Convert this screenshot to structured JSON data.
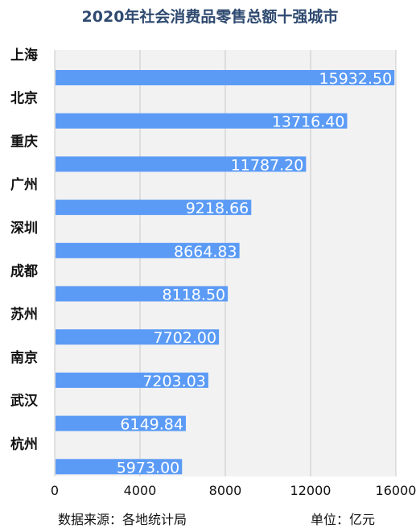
{
  "chart_data": {
    "type": "bar",
    "orientation": "horizontal",
    "title": "2020年社会消费品零售总额十强城市",
    "categories": [
      "上海",
      "北京",
      "重庆",
      "广州",
      "深圳",
      "成都",
      "苏州",
      "南京",
      "武汉",
      "杭州"
    ],
    "values": [
      15932.5,
      13716.4,
      11787.2,
      9218.66,
      8664.83,
      8118.5,
      7702.0,
      7203.03,
      6149.84,
      5973.0
    ],
    "value_labels": [
      "15932.50",
      "13716.40",
      "11787.20",
      "9218.66",
      "8664.83",
      "8118.50",
      "7702.00",
      "7203.03",
      "6149.84",
      "5973.00"
    ],
    "xlim": [
      0,
      16000
    ],
    "xticks": [
      0,
      4000,
      8000,
      12000,
      16000
    ],
    "xtick_labels": [
      "0",
      "4000",
      "8000",
      "12000",
      "16000"
    ],
    "grid": true,
    "bar_color": "#5b9bf6",
    "title_color": "#2f4a70"
  },
  "footer": {
    "source": "数据来源：各地统计局",
    "unit": "单位：亿元"
  }
}
